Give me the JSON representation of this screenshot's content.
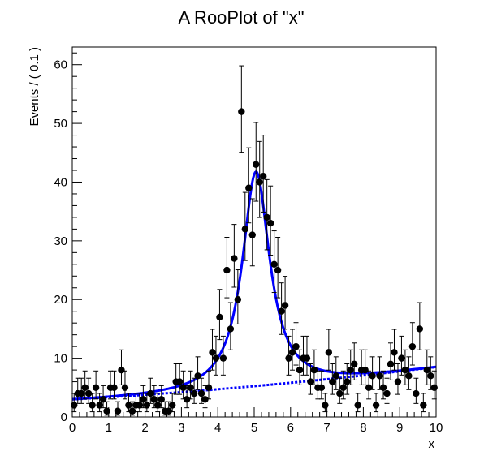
{
  "chart_data": {
    "type": "scatter",
    "title": "A RooPlot of \"x\"",
    "xlabel": "x",
    "ylabel": "Events / ( 0.1 )",
    "xlim": [
      0,
      10
    ],
    "ylim": [
      0,
      63
    ],
    "xticks": [
      0,
      1,
      2,
      3,
      4,
      5,
      6,
      7,
      8,
      9,
      10
    ],
    "yticks": [
      0,
      10,
      20,
      30,
      40,
      50,
      60
    ],
    "grid": false,
    "legend": "none",
    "colors": {
      "data": "#000000",
      "model": "#0000ff"
    },
    "series": [
      {
        "kind": "data-points-with-errors",
        "x": [
          0.05,
          0.15,
          0.25,
          0.35,
          0.45,
          0.55,
          0.65,
          0.75,
          0.85,
          0.95,
          1.05,
          1.15,
          1.25,
          1.35,
          1.45,
          1.55,
          1.65,
          1.75,
          1.85,
          1.95,
          2.05,
          2.15,
          2.25,
          2.35,
          2.45,
          2.55,
          2.65,
          2.75,
          2.85,
          2.95,
          3.05,
          3.15,
          3.25,
          3.35,
          3.45,
          3.55,
          3.65,
          3.75,
          3.85,
          3.95,
          4.05,
          4.15,
          4.25,
          4.35,
          4.45,
          4.55,
          4.65,
          4.75,
          4.85,
          4.95,
          5.05,
          5.15,
          5.25,
          5.35,
          5.45,
          5.55,
          5.65,
          5.75,
          5.85,
          5.95,
          6.05,
          6.15,
          6.25,
          6.35,
          6.45,
          6.55,
          6.65,
          6.75,
          6.85,
          6.95,
          7.05,
          7.15,
          7.25,
          7.35,
          7.45,
          7.55,
          7.65,
          7.75,
          7.85,
          7.95,
          8.05,
          8.15,
          8.25,
          8.35,
          8.45,
          8.55,
          8.65,
          8.75,
          8.85,
          8.95,
          9.05,
          9.15,
          9.25,
          9.35,
          9.45,
          9.55,
          9.65,
          9.75,
          9.85,
          9.95
        ],
        "y": [
          2,
          4,
          4,
          5,
          4,
          2,
          5,
          2,
          3,
          1,
          5,
          5,
          1,
          8,
          5,
          2,
          1,
          2,
          2,
          3,
          2,
          4,
          3,
          2,
          3,
          1,
          1,
          2,
          6,
          6,
          5,
          3,
          5,
          4,
          7,
          4,
          3,
          5,
          11,
          10,
          17,
          10,
          25,
          15,
          27,
          20,
          52,
          32,
          39,
          31,
          43,
          40,
          41,
          34,
          33,
          26,
          25,
          18,
          19,
          10,
          11,
          12,
          8,
          10,
          10,
          6,
          8,
          5,
          5,
          2,
          11,
          6,
          7,
          4,
          5,
          6,
          8,
          9,
          2,
          8,
          8,
          5,
          7,
          2,
          7,
          5,
          4,
          9,
          11,
          6,
          10,
          8,
          7,
          12,
          4,
          15,
          2,
          8,
          7,
          5
        ]
      },
      {
        "kind": "total-pdf-curve",
        "name": ""
      },
      {
        "kind": "background-pdf-curve-dashed",
        "name": ""
      }
    ]
  }
}
